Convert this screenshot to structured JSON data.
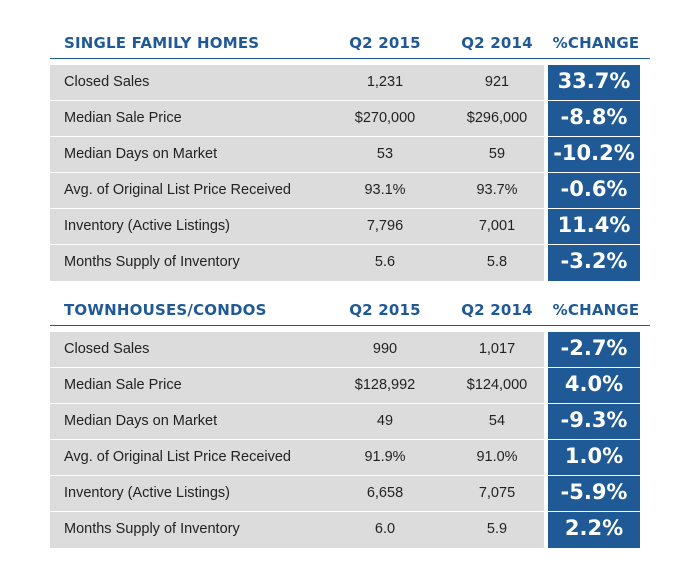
{
  "sections": [
    {
      "title": "SINGLE FAMILY HOMES",
      "col1": "Q2 2015",
      "col2": "Q2 2014",
      "col3": "%CHANGE",
      "rows": [
        {
          "label": "Closed Sales",
          "q2_2015": "1,231",
          "q2_2014": "921",
          "change": "33.7%"
        },
        {
          "label": "Median Sale Price",
          "q2_2015": "$270,000",
          "q2_2014": "$296,000",
          "change": "-8.8%"
        },
        {
          "label": "Median Days on Market",
          "q2_2015": "53",
          "q2_2014": "59",
          "change": "-10.2%"
        },
        {
          "label": "Avg. of Original List Price Received",
          "q2_2015": "93.1%",
          "q2_2014": "93.7%",
          "change": "-0.6%"
        },
        {
          "label": "Inventory (Active Listings)",
          "q2_2015": "7,796",
          "q2_2014": "7,001",
          "change": "11.4%"
        },
        {
          "label": "Months Supply of Inventory",
          "q2_2015": "5.6",
          "q2_2014": "5.8",
          "change": "-3.2%"
        }
      ]
    },
    {
      "title": "TOWNHOUSES/CONDOS",
      "col1": "Q2 2015",
      "col2": "Q2 2014",
      "col3": "%CHANGE",
      "rows": [
        {
          "label": "Closed Sales",
          "q2_2015": "990",
          "q2_2014": "1,017",
          "change": "-2.7%"
        },
        {
          "label": "Median Sale Price",
          "q2_2015": "$128,992",
          "q2_2014": "$124,000",
          "change": "4.0%"
        },
        {
          "label": "Median Days on Market",
          "q2_2015": "49",
          "q2_2014": "54",
          "change": "-9.3%"
        },
        {
          "label": "Avg. of Original List Price Received",
          "q2_2015": "91.9%",
          "q2_2014": "91.0%",
          "change": "1.0%"
        },
        {
          "label": "Inventory (Active Listings)",
          "q2_2015": "6,658",
          "q2_2014": "7,075",
          "change": "-5.9%"
        },
        {
          "label": "Months Supply of Inventory",
          "q2_2015": "6.0",
          "q2_2014": "5.9",
          "change": "2.2%"
        }
      ]
    }
  ],
  "colors": {
    "accent": "#1f5a96",
    "row_bg": "#dcdcdc",
    "text": "#222222"
  }
}
